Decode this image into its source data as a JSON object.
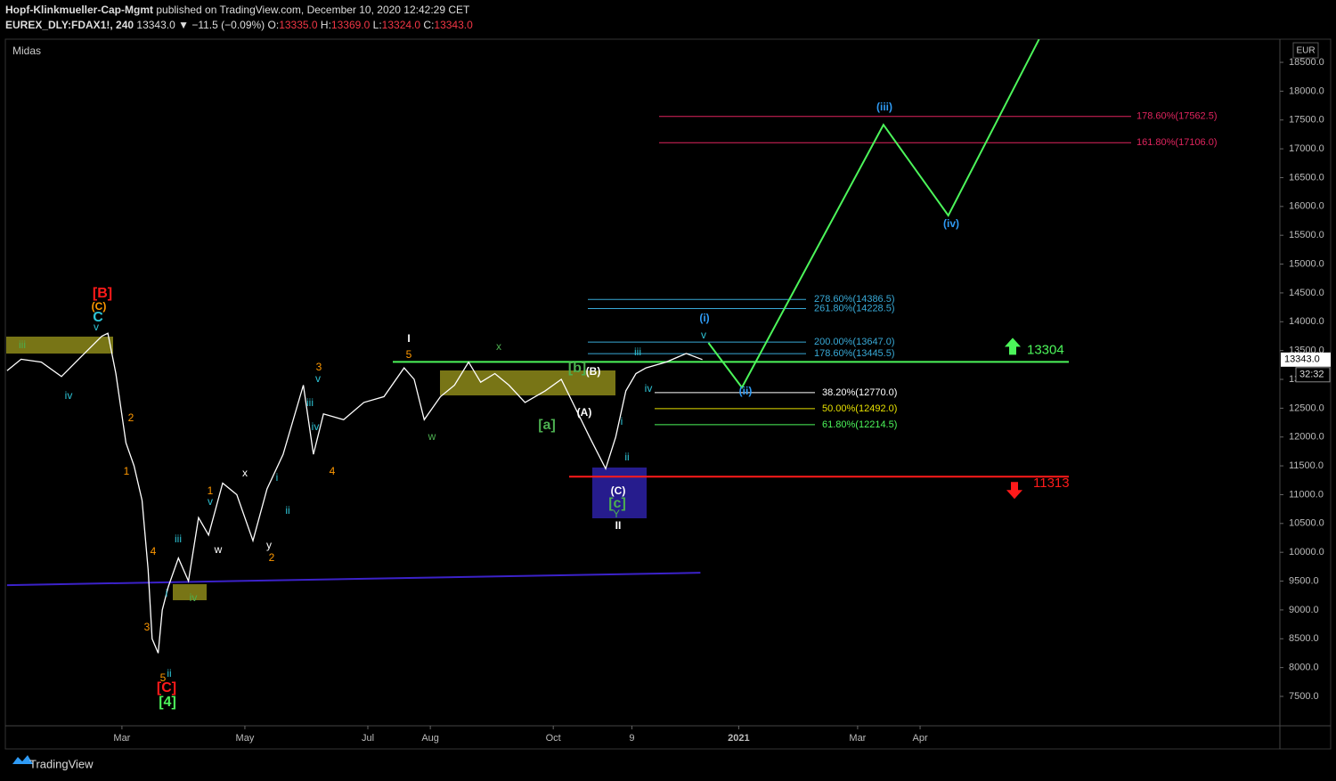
{
  "header": {
    "author": "Hopf-Klinkmueller-Cap-Mgmt",
    "published": "published on TradingView.com, December 10, 2020 12:42:29 CET",
    "symbol": "EUREX_DLY:FDAX1!, 240",
    "last": "13343.0",
    "change": "▼ −11.5 (−0.09%)",
    "o_label": "O:",
    "o": "13335.0",
    "h_label": "H:",
    "h": "13369.0",
    "l_label": "L:",
    "l": "13324.0",
    "c_label": "C:",
    "c": "13343.0"
  },
  "footer": {
    "brand": "TradingView"
  },
  "chart_data": {
    "type": "line",
    "study": "Midas",
    "currency": "EUR",
    "price_tag": {
      "value": 13343,
      "label": "13343.0"
    },
    "countdown": "32:32",
    "xlim": [
      2.6,
      634.5
    ],
    "ylim": [
      6990,
      18902
    ],
    "xticks": [
      {
        "value": 60,
        "label": "Mar"
      },
      {
        "value": 121,
        "label": "May"
      },
      {
        "value": 182,
        "label": "Jul"
      },
      {
        "value": 213,
        "label": "Aug"
      },
      {
        "value": 274,
        "label": "Oct"
      },
      {
        "value": 313,
        "label": "9"
      },
      {
        "value": 366,
        "label": "2021"
      },
      {
        "value": 425,
        "label": "Mar"
      },
      {
        "value": 456,
        "label": "Apr"
      }
    ],
    "yticks": [
      {
        "value": 7500,
        "label": "7500.0"
      },
      {
        "value": 8000,
        "label": "8000.0"
      },
      {
        "value": 8500,
        "label": "8500.0"
      },
      {
        "value": 9000,
        "label": "9000.0"
      },
      {
        "value": 9500,
        "label": "9500.0"
      },
      {
        "value": 10000,
        "label": "10000.0"
      },
      {
        "value": 10500,
        "label": "10500.0"
      },
      {
        "value": 11000,
        "label": "11000.0"
      },
      {
        "value": 11500,
        "label": "11500.0"
      },
      {
        "value": 12000,
        "label": "12000.0"
      },
      {
        "value": 12500,
        "label": "12500.0"
      },
      {
        "value": 13000,
        "label": "13000.0"
      },
      {
        "value": 13500,
        "label": "13500.0"
      },
      {
        "value": 14000,
        "label": "14000.0"
      },
      {
        "value": 14500,
        "label": "14500.0"
      },
      {
        "value": 15000,
        "label": "15000.0"
      },
      {
        "value": 15500,
        "label": "15500.0"
      },
      {
        "value": 16000,
        "label": "16000.0"
      },
      {
        "value": 16500,
        "label": "16500.0"
      },
      {
        "value": 17000,
        "label": "17000.0"
      },
      {
        "value": 17500,
        "label": "17500.0"
      },
      {
        "value": 18000,
        "label": "18000.0"
      },
      {
        "value": 18500,
        "label": "18500.0"
      }
    ],
    "series": [
      {
        "color": "#ffffff",
        "x": [
          3,
          10,
          20,
          30,
          40,
          50,
          53,
          57,
          62,
          66,
          70,
          73,
          75,
          78,
          80,
          83,
          88,
          93,
          98,
          103,
          110,
          117,
          125,
          132,
          140,
          150,
          155,
          160,
          170,
          180,
          190,
          200,
          205,
          210,
          218,
          225,
          232,
          238,
          245,
          252,
          260,
          270,
          278,
          285,
          292,
          300,
          305,
          310,
          315,
          320,
          330,
          340,
          348
        ],
        "values": [
          13150,
          13350,
          13300,
          13050,
          13400,
          13750,
          13800,
          13100,
          11900,
          11500,
          10900,
          9700,
          8500,
          8250,
          9000,
          9400,
          9900,
          9500,
          10600,
          10300,
          11200,
          11000,
          10200,
          11100,
          11700,
          12900,
          11700,
          12400,
          12300,
          12600,
          12700,
          13200,
          13000,
          12300,
          12700,
          12900,
          13300,
          12950,
          13100,
          12900,
          12600,
          12800,
          13000,
          12500,
          12000,
          11450,
          12000,
          12800,
          13100,
          13200,
          13300,
          13450,
          13343
        ]
      },
      {
        "color": "#4cf55a",
        "x": [
          351,
          367.6,
          437.8,
          470,
          515
        ],
        "values": [
          13633,
          12860,
          17418,
          15843,
          18900
        ]
      }
    ],
    "trendline": {
      "color": "#3b22c9",
      "x": [
        3,
        347
      ],
      "values": [
        9430,
        9645
      ]
    },
    "key_levels": [
      {
        "value": 13304,
        "label": "13304",
        "color": "#4cf55a"
      },
      {
        "value": 11313,
        "label": "11313",
        "color": "#ff1a1a"
      }
    ],
    "fib_levels": [
      {
        "value": 14386.5,
        "label": "278.60%(14386.5)",
        "color": "#38a9d6"
      },
      {
        "value": 14228.5,
        "label": "261.80%(14228.5)",
        "color": "#38a9d6"
      },
      {
        "value": 13647,
        "label": "200.00%(13647.0)",
        "color": "#38a9d6"
      },
      {
        "value": 13445.5,
        "label": "178.60%(13445.5)",
        "color": "#38a9d6"
      },
      {
        "value": 12770,
        "label": "38.20%(12770.0)",
        "color": "#ffffff"
      },
      {
        "value": 12492,
        "label": "50.00%(12492.0)",
        "color": "#e6e000"
      },
      {
        "value": 12214.5,
        "label": "61.80%(12214.5)",
        "color": "#4cf55a"
      },
      {
        "value": 17562.5,
        "label": "178.60%(17562.5)",
        "color": "#e0245e"
      },
      {
        "value": 17106,
        "label": "161.80%(17106.0)",
        "color": "#e0245e"
      }
    ],
    "annotations": [
      {
        "label": "[B]",
        "color": "#ff1a1a"
      },
      {
        "label": "(C)",
        "color": "#ff9800"
      },
      {
        "label": "C",
        "color": "#2ec4d6"
      },
      {
        "label": "v",
        "color": "#2ec4d6"
      },
      {
        "label": "iii",
        "color": "#4caf50"
      },
      {
        "label": "iv",
        "color": "#2ec4d6"
      },
      {
        "label": "2",
        "color": "#ff9800"
      },
      {
        "label": "1",
        "color": "#ff9800"
      },
      {
        "label": "4",
        "color": "#ff9800"
      },
      {
        "label": "3",
        "color": "#ff9800"
      },
      {
        "label": "i",
        "color": "#2ec4d6"
      },
      {
        "label": "ii",
        "color": "#2ec4d6"
      },
      {
        "label": "5",
        "color": "#ff9800"
      },
      {
        "label": "[C]",
        "color": "#ff1a1a"
      },
      {
        "label": "[4]",
        "color": "#4cf55a"
      },
      {
        "label": "iii",
        "color": "#2ec4d6"
      },
      {
        "label": "iv",
        "color": "#4caf50"
      },
      {
        "label": "1",
        "color": "#ff9800"
      },
      {
        "label": "v",
        "color": "#2ec4d6"
      },
      {
        "label": "w",
        "color": "#ffffff"
      },
      {
        "label": "x",
        "color": "#ffffff"
      },
      {
        "label": "y",
        "color": "#ffffff"
      },
      {
        "label": "2",
        "color": "#ff9800"
      },
      {
        "label": "i",
        "color": "#2ec4d6"
      },
      {
        "label": "ii",
        "color": "#2ec4d6"
      },
      {
        "label": "3",
        "color": "#ff9800"
      },
      {
        "label": "v",
        "color": "#2ec4d6"
      },
      {
        "label": "iii",
        "color": "#2ec4d6"
      },
      {
        "label": "iv",
        "color": "#2ec4d6"
      },
      {
        "label": "4",
        "color": "#ff9800"
      },
      {
        "label": "I",
        "color": "#ffffff"
      },
      {
        "label": "5",
        "color": "#ff9800"
      },
      {
        "label": "w",
        "color": "#4caf50"
      },
      {
        "label": "x",
        "color": "#4caf50"
      },
      {
        "label": "[b]",
        "color": "#4caf50"
      },
      {
        "label": "(B)",
        "color": "#ffffff"
      },
      {
        "label": "(A)",
        "color": "#ffffff"
      },
      {
        "label": "[a]",
        "color": "#4caf50"
      },
      {
        "label": "ii",
        "color": "#2ec4d6"
      },
      {
        "label": "i",
        "color": "#2ec4d6"
      },
      {
        "label": "iii",
        "color": "#2ec4d6"
      },
      {
        "label": "iv",
        "color": "#2ec4d6"
      },
      {
        "label": "v",
        "color": "#2ec4d6"
      },
      {
        "label": "(i)",
        "color": "#2f9bf5"
      },
      {
        "label": "(ii)",
        "color": "#2f9bf5"
      },
      {
        "label": "(iii)",
        "color": "#2f9bf5"
      },
      {
        "label": "(iv)",
        "color": "#2f9bf5"
      },
      {
        "label": "(C)",
        "color": "#ffffff"
      },
      {
        "label": "[c]",
        "color": "#4caf50"
      },
      {
        "label": "Y",
        "color": "#4caf50"
      },
      {
        "label": "II",
        "color": "#ffffff"
      }
    ]
  }
}
